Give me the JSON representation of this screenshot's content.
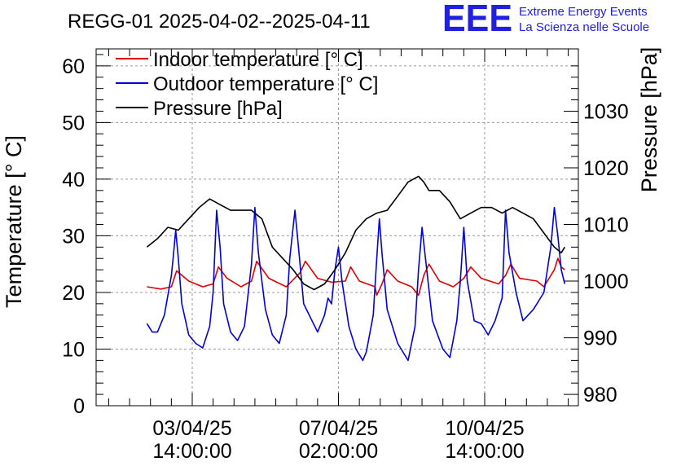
{
  "title": "REGG-01 2025-04-02--2025-04-11",
  "logo": {
    "mark": "EEE",
    "line1": "Extreme Energy Events",
    "line2": "La Scienza nelle Scuole"
  },
  "colors": {
    "indoor": "#e00000",
    "outdoor": "#0000e0",
    "pressure": "#000000",
    "logo": "#2020e0"
  },
  "chart_data": {
    "type": "line",
    "title": "REGG-01 2025-04-02--2025-04-11",
    "xlabel": "",
    "ylabel": "Temperature [° C]",
    "y2label": "Pressure [hPa]",
    "ylim": [
      0,
      63
    ],
    "y2lim": [
      978,
      1041
    ],
    "yticks": [
      "0",
      "10",
      "20",
      "30",
      "40",
      "50",
      "60"
    ],
    "y2ticks": [
      "980",
      "990",
      "1000",
      "1010",
      "1020",
      "1030"
    ],
    "xticks": [
      {
        "date": "03/04/25",
        "time": "14:00:00"
      },
      {
        "date": "07/04/25",
        "time": "02:00:00"
      },
      {
        "date": "10/04/25",
        "time": "14:00:00"
      }
    ],
    "grid": true,
    "legend_position": "top-left",
    "series": [
      {
        "name": "Indoor temperature [° C]",
        "axis": "left",
        "points": [
          [
            "2025-04-02T12:00",
            21.0
          ],
          [
            "2025-04-02T20:00",
            20.6
          ],
          [
            "2025-04-03T02:00",
            21.0
          ],
          [
            "2025-04-03T05:00",
            23.8
          ],
          [
            "2025-04-03T12:00",
            22.0
          ],
          [
            "2025-04-03T20:00",
            21.0
          ],
          [
            "2025-04-04T02:00",
            21.5
          ],
          [
            "2025-04-04T05:00",
            24.5
          ],
          [
            "2025-04-04T10:00",
            22.5
          ],
          [
            "2025-04-04T18:00",
            21.0
          ],
          [
            "2025-04-05T00:00",
            22.0
          ],
          [
            "2025-04-05T03:00",
            25.5
          ],
          [
            "2025-04-05T10:00",
            22.5
          ],
          [
            "2025-04-05T20:00",
            21.0
          ],
          [
            "2025-04-06T04:00",
            23.5
          ],
          [
            "2025-04-06T07:00",
            25.5
          ],
          [
            "2025-04-06T14:00",
            22.5
          ],
          [
            "2025-04-06T22:00",
            21.8
          ],
          [
            "2025-04-07T06:00",
            22.0
          ],
          [
            "2025-04-07T09:00",
            24.5
          ],
          [
            "2025-04-07T14:00",
            22.0
          ],
          [
            "2025-04-07T23:00",
            21.0
          ],
          [
            "2025-04-08T00:00",
            19.5
          ],
          [
            "2025-04-08T03:00",
            21.5
          ],
          [
            "2025-04-08T06:00",
            24.0
          ],
          [
            "2025-04-08T12:00",
            22.0
          ],
          [
            "2025-04-08T20:00",
            21.0
          ],
          [
            "2025-04-09T00:00",
            19.5
          ],
          [
            "2025-04-09T03:00",
            23.0
          ],
          [
            "2025-04-09T06:00",
            25.0
          ],
          [
            "2025-04-09T12:00",
            22.0
          ],
          [
            "2025-04-09T20:00",
            21.0
          ],
          [
            "2025-04-10T02:00",
            22.5
          ],
          [
            "2025-04-10T06:00",
            24.5
          ],
          [
            "2025-04-10T12:00",
            22.5
          ],
          [
            "2025-04-10T22:00",
            21.5
          ],
          [
            "2025-04-11T02:00",
            23.0
          ],
          [
            "2025-04-11T05:00",
            25.0
          ],
          [
            "2025-04-11T10:00",
            22.5
          ],
          [
            "2025-04-11T20:00",
            22.0
          ],
          [
            "2025-04-12T00:00",
            21.0
          ],
          [
            "2025-04-12T06:00",
            24.0
          ],
          [
            "2025-04-12T08:00",
            26.0
          ],
          [
            "2025-04-12T10:00",
            24.5
          ],
          [
            "2025-04-12T12:00",
            24.0
          ]
        ]
      },
      {
        "name": "Outdoor temperature [° C]",
        "axis": "left",
        "points": [
          [
            "2025-04-02T12:00",
            14.5
          ],
          [
            "2025-04-02T15:00",
            13.0
          ],
          [
            "2025-04-02T18:00",
            13.0
          ],
          [
            "2025-04-02T22:00",
            16.0
          ],
          [
            "2025-04-03T02:00",
            23.0
          ],
          [
            "2025-04-03T03:00",
            26.0
          ],
          [
            "2025-04-03T04:30",
            31.0
          ],
          [
            "2025-04-03T06:00",
            26.0
          ],
          [
            "2025-04-03T08:00",
            18.0
          ],
          [
            "2025-04-03T12:00",
            12.5
          ],
          [
            "2025-04-03T16:00",
            11.0
          ],
          [
            "2025-04-03T20:00",
            10.2
          ],
          [
            "2025-04-04T00:00",
            14.0
          ],
          [
            "2025-04-04T02:00",
            20.0
          ],
          [
            "2025-04-04T04:00",
            34.5
          ],
          [
            "2025-04-04T06:00",
            28.0
          ],
          [
            "2025-04-04T08:00",
            18.0
          ],
          [
            "2025-04-04T12:00",
            13.0
          ],
          [
            "2025-04-04T16:00",
            11.5
          ],
          [
            "2025-04-04T20:00",
            14.0
          ],
          [
            "2025-04-05T00:00",
            25.0
          ],
          [
            "2025-04-05T02:00",
            35.0
          ],
          [
            "2025-04-05T04:00",
            27.0
          ],
          [
            "2025-04-05T08:00",
            17.0
          ],
          [
            "2025-04-05T12:00",
            12.5
          ],
          [
            "2025-04-05T16:00",
            11.0
          ],
          [
            "2025-04-05T20:00",
            16.0
          ],
          [
            "2025-04-05T22:00",
            26.0
          ],
          [
            "2025-04-06T01:00",
            34.5
          ],
          [
            "2025-04-06T03:00",
            28.0
          ],
          [
            "2025-04-06T06:00",
            18.0
          ],
          [
            "2025-04-06T10:00",
            15.5
          ],
          [
            "2025-04-06T14:00",
            13.0
          ],
          [
            "2025-04-06T18:00",
            16.0
          ],
          [
            "2025-04-06T20:00",
            19.0
          ],
          [
            "2025-04-06T22:00",
            18.0
          ],
          [
            "2025-04-07T00:00",
            24.0
          ],
          [
            "2025-04-07T02:00",
            28.0
          ],
          [
            "2025-04-07T04:00",
            22.0
          ],
          [
            "2025-04-07T08:00",
            14.0
          ],
          [
            "2025-04-07T12:00",
            10.0
          ],
          [
            "2025-04-07T16:00",
            8.0
          ],
          [
            "2025-04-07T18:00",
            9.5
          ],
          [
            "2025-04-07T22:00",
            16.0
          ],
          [
            "2025-04-08T00:00",
            26.0
          ],
          [
            "2025-04-08T01:30",
            33.0
          ],
          [
            "2025-04-08T03:00",
            27.0
          ],
          [
            "2025-04-08T06:00",
            17.0
          ],
          [
            "2025-04-08T12:00",
            11.0
          ],
          [
            "2025-04-08T18:00",
            8.0
          ],
          [
            "2025-04-08T22:00",
            14.0
          ],
          [
            "2025-04-09T00:00",
            24.0
          ],
          [
            "2025-04-09T02:00",
            31.5
          ],
          [
            "2025-04-09T04:00",
            26.0
          ],
          [
            "2025-04-09T08:00",
            15.0
          ],
          [
            "2025-04-09T14:00",
            10.0
          ],
          [
            "2025-04-09T18:00",
            8.5
          ],
          [
            "2025-04-09T22:00",
            15.0
          ],
          [
            "2025-04-10T00:00",
            22.0
          ],
          [
            "2025-04-10T02:00",
            31.5
          ],
          [
            "2025-04-10T04:00",
            22.0
          ],
          [
            "2025-04-10T08:00",
            15.0
          ],
          [
            "2025-04-10T12:00",
            14.5
          ],
          [
            "2025-04-10T16:00",
            12.5
          ],
          [
            "2025-04-10T20:00",
            15.0
          ],
          [
            "2025-04-11T00:00",
            19.0
          ],
          [
            "2025-04-11T02:00",
            34.5
          ],
          [
            "2025-04-11T04:00",
            27.0
          ],
          [
            "2025-04-11T08:00",
            20.0
          ],
          [
            "2025-04-11T12:00",
            15.0
          ],
          [
            "2025-04-11T18:00",
            17.0
          ],
          [
            "2025-04-12T00:00",
            20.0
          ],
          [
            "2025-04-12T04:00",
            28.0
          ],
          [
            "2025-04-12T06:00",
            35.0
          ],
          [
            "2025-04-12T08:00",
            30.0
          ],
          [
            "2025-04-12T10:00",
            24.0
          ],
          [
            "2025-04-12T12:00",
            21.5
          ]
        ]
      },
      {
        "name": "Pressure [hPa]",
        "axis": "right",
        "points": [
          [
            "2025-04-02T12:00",
            1006.0
          ],
          [
            "2025-04-02T18:00",
            1007.5
          ],
          [
            "2025-04-03T00:00",
            1009.5
          ],
          [
            "2025-04-03T06:00",
            1009.0
          ],
          [
            "2025-04-03T12:00",
            1011.0
          ],
          [
            "2025-04-03T18:00",
            1013.0
          ],
          [
            "2025-04-04T00:00",
            1014.5
          ],
          [
            "2025-04-04T06:00",
            1013.5
          ],
          [
            "2025-04-04T12:00",
            1012.5
          ],
          [
            "2025-04-04T18:00",
            1012.5
          ],
          [
            "2025-04-05T00:00",
            1012.5
          ],
          [
            "2025-04-05T06:00",
            1011.0
          ],
          [
            "2025-04-05T12:00",
            1006.0
          ],
          [
            "2025-04-05T18:00",
            1004.0
          ],
          [
            "2025-04-06T00:00",
            1002.0
          ],
          [
            "2025-04-06T06:00",
            999.5
          ],
          [
            "2025-04-06T12:00",
            998.5
          ],
          [
            "2025-04-06T18:00",
            999.5
          ],
          [
            "2025-04-07T00:00",
            1002.0
          ],
          [
            "2025-04-07T06:00",
            1005.0
          ],
          [
            "2025-04-07T12:00",
            1009.0
          ],
          [
            "2025-04-07T18:00",
            1011.0
          ],
          [
            "2025-04-08T00:00",
            1012.0
          ],
          [
            "2025-04-08T06:00",
            1012.5
          ],
          [
            "2025-04-08T12:00",
            1015.0
          ],
          [
            "2025-04-08T18:00",
            1017.5
          ],
          [
            "2025-04-09T00:00",
            1018.5
          ],
          [
            "2025-04-09T03:00",
            1017.5
          ],
          [
            "2025-04-09T06:00",
            1016.0
          ],
          [
            "2025-04-09T12:00",
            1016.0
          ],
          [
            "2025-04-09T18:00",
            1014.0
          ],
          [
            "2025-04-10T00:00",
            1011.0
          ],
          [
            "2025-04-10T06:00",
            1012.0
          ],
          [
            "2025-04-10T12:00",
            1013.0
          ],
          [
            "2025-04-10T18:00",
            1013.0
          ],
          [
            "2025-04-11T00:00",
            1012.0
          ],
          [
            "2025-04-11T06:00",
            1013.0
          ],
          [
            "2025-04-11T12:00",
            1012.0
          ],
          [
            "2025-04-11T18:00",
            1011.0
          ],
          [
            "2025-04-12T00:00",
            1008.5
          ],
          [
            "2025-04-12T06:00",
            1006.0
          ],
          [
            "2025-04-12T10:00",
            1005.0
          ],
          [
            "2025-04-12T12:00",
            1006.0
          ]
        ]
      }
    ]
  }
}
